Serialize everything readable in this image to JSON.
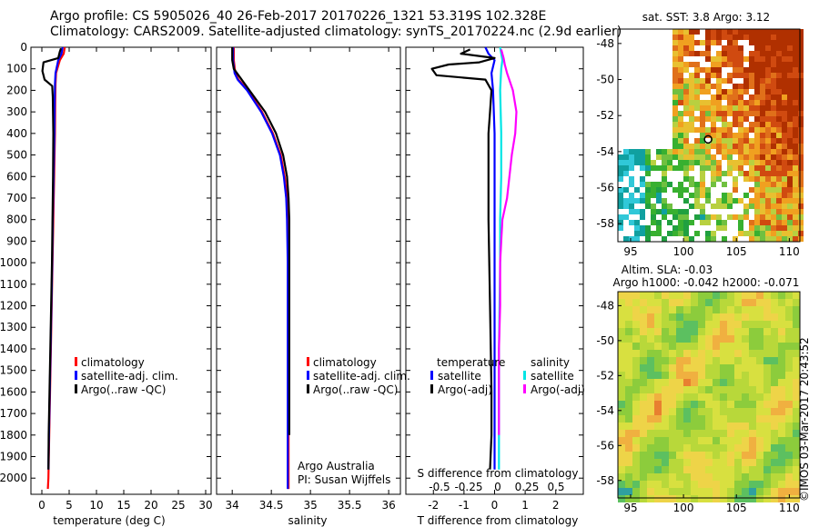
{
  "title_line1": "Argo profile: CS 5905026_40 26-Feb-2017 20170226_1321 53.319S 102.328E",
  "title_line2": "Climatology: CARS2009. Satellite-adjusted climatology: synTS_20170224.nc (2.9d earlier)",
  "colors": {
    "climatology": "#ff0000",
    "satellite": "#0000ff",
    "argo": "#000000",
    "t_satellite": "#0000ff",
    "s_satellite": "#00e5e5",
    "s_argo": "#ff00ff"
  },
  "legend_temp": {
    "climatology": "climatology",
    "satellite": "satellite-adj. clim.",
    "argo": "Argo(..raw -QC)"
  },
  "legend_sal": {
    "climatology": "climatology",
    "satellite": "satellite-adj. clim.",
    "argo": "Argo(..raw -QC)"
  },
  "legend_diff": {
    "temp_head": "temperature",
    "temp_sat": "satellite",
    "temp_argo": "Argo(-adj)",
    "sal_head": "salinity",
    "sal_sat": "satellite",
    "sal_argo": "Argo(-adj)"
  },
  "sal_note": {
    "line1": "Argo Australia",
    "line2": "PI: Susan Wijffels"
  },
  "sst_title": "sat. SST: 3.8  Argo: 3.12",
  "sla_title1": "Altim. SLA: -0.03",
  "sla_title2": "Argo h1000: -0.042  h2000: -0.071",
  "watermark": "©IMOS 03-Mar-2017 20:43:52",
  "chart_data": [
    {
      "type": "line",
      "name": "temperature-profile",
      "xlabel": "temperature (deg C)",
      "ylabel": "",
      "xlim": [
        -2,
        31
      ],
      "ylim": [
        2075,
        0
      ],
      "xticks": [
        0,
        5,
        10,
        15,
        20,
        25,
        30
      ],
      "yticks": [
        0,
        100,
        200,
        300,
        400,
        500,
        600,
        700,
        800,
        900,
        1000,
        1100,
        1200,
        1300,
        1400,
        1500,
        1600,
        1700,
        1800,
        1900,
        2000
      ],
      "series": [
        {
          "name": "climatology",
          "color": "#ff0000",
          "x": [
            4.2,
            4.0,
            3.3,
            2.6,
            2.5,
            2.45,
            2.4,
            2.25,
            2.1,
            1.95,
            1.8,
            1.65,
            1.5,
            1.35,
            1.2,
            1.1
          ],
          "y": [
            0,
            30,
            60,
            120,
            170,
            250,
            400,
            600,
            800,
            1000,
            1200,
            1400,
            1600,
            1800,
            2000,
            2050
          ]
        },
        {
          "name": "satellite-adj. clim.",
          "color": "#0000ff",
          "x": [
            3.8,
            3.6,
            3.0,
            2.5,
            2.4,
            2.35,
            2.3,
            2.15,
            2.0,
            1.9,
            1.75,
            1.6,
            1.45,
            1.3,
            1.2
          ],
          "y": [
            0,
            30,
            60,
            120,
            170,
            250,
            400,
            600,
            800,
            1000,
            1200,
            1400,
            1600,
            1800,
            1960
          ]
        },
        {
          "name": "Argo(..raw -QC)",
          "color": "#000000",
          "x": [
            3.5,
            3.3,
            3.0,
            0.3,
            0.1,
            0.5,
            1.9,
            2.0,
            2.1,
            2.05,
            1.95,
            1.85,
            1.7,
            1.55,
            1.4,
            1.25,
            1.2
          ],
          "y": [
            5,
            20,
            50,
            70,
            110,
            150,
            180,
            230,
            400,
            600,
            800,
            1000,
            1200,
            1400,
            1600,
            1800,
            1960
          ]
        }
      ]
    },
    {
      "type": "line",
      "name": "salinity-profile",
      "xlabel": "salinity",
      "ylabel": "",
      "xlim": [
        33.8,
        36.15
      ],
      "ylim": [
        2075,
        0
      ],
      "xticks": [
        34,
        34.5,
        35,
        35.5,
        36
      ],
      "xticklabels": [
        "34",
        "34.5",
        "35",
        "35.5",
        "36"
      ],
      "series": [
        {
          "name": "climatology",
          "color": "#ff0000",
          "x": [
            34.02,
            34.02,
            34.04,
            34.08,
            34.2,
            34.38,
            34.52,
            34.62,
            34.67,
            34.7,
            34.71,
            34.72,
            34.72,
            34.72,
            34.72,
            34.72,
            34.72
          ],
          "y": [
            0,
            60,
            120,
            150,
            200,
            300,
            400,
            500,
            600,
            700,
            800,
            1000,
            1200,
            1400,
            1600,
            1800,
            2050
          ]
        },
        {
          "name": "satellite-adj. clim.",
          "color": "#0000ff",
          "x": [
            34.01,
            34.01,
            34.03,
            34.07,
            34.19,
            34.37,
            34.51,
            34.61,
            34.66,
            34.69,
            34.7,
            34.71,
            34.71,
            34.71,
            34.71,
            34.71,
            34.71
          ],
          "y": [
            0,
            60,
            120,
            150,
            200,
            300,
            400,
            500,
            600,
            700,
            800,
            1000,
            1200,
            1400,
            1600,
            1800,
            2050
          ]
        },
        {
          "name": "Argo(..raw -QC)",
          "color": "#000000",
          "x": [
            34.0,
            34.0,
            34.02,
            34.1,
            34.22,
            34.42,
            34.56,
            34.65,
            34.7,
            34.72,
            34.73,
            34.73,
            34.73,
            34.73,
            34.73,
            34.73
          ],
          "y": [
            0,
            60,
            100,
            140,
            200,
            300,
            400,
            500,
            600,
            700,
            800,
            1000,
            1200,
            1400,
            1600,
            1800
          ]
        }
      ]
    },
    {
      "type": "line",
      "name": "difference-from-climatology",
      "xlabel": "T difference from climatology",
      "top_axis_label": "S difference from climatology",
      "xlim": [
        -2.9,
        2.9
      ],
      "ylim": [
        2075,
        0
      ],
      "xticks": [
        -2,
        -1,
        0,
        1,
        2
      ],
      "top_ticks": [
        -0.5,
        -0.25,
        0,
        0.25,
        0.5
      ],
      "top_ticklabels": [
        "-0.5",
        "-0.25",
        "0",
        "0.25",
        "0.5"
      ],
      "series": [
        {
          "name": "temperature satellite",
          "quantity": "T",
          "color": "#0000ff",
          "x": [
            -0.3,
            -0.2,
            0.0,
            -0.1,
            -0.05,
            0.0,
            0.0,
            0.0,
            0.0,
            0.0,
            0.0,
            0.0
          ],
          "y": [
            0,
            30,
            60,
            120,
            200,
            400,
            600,
            800,
            1000,
            1400,
            1800,
            1960
          ]
        },
        {
          "name": "temperature Argo(-adj)",
          "quantity": "T",
          "color": "#000000",
          "x": [
            -0.8,
            -1.1,
            0.0,
            -0.5,
            -1.5,
            -2.05,
            -1.9,
            -0.3,
            -0.1,
            -0.15,
            -0.2,
            -0.2,
            -0.15,
            -0.1,
            -0.1,
            -0.15
          ],
          "y": [
            10,
            30,
            50,
            70,
            80,
            100,
            130,
            150,
            200,
            300,
            400,
            800,
            1200,
            1600,
            1800,
            1960
          ]
        },
        {
          "name": "salinity satellite",
          "quantity": "S",
          "color": "#00e5e5",
          "x": [
            0.02,
            0.03,
            0.04,
            0.03,
            0.02,
            0.03,
            0.03,
            0.02,
            0.02,
            0.01,
            0.01,
            0.01
          ],
          "y": [
            0,
            30,
            60,
            100,
            200,
            400,
            600,
            800,
            1000,
            1400,
            1800,
            1960
          ]
        },
        {
          "name": "salinity Argo(-adj)",
          "quantity": "S",
          "color": "#ff00ff",
          "x": [
            0.03,
            0.05,
            0.06,
            0.08,
            0.13,
            0.16,
            0.15,
            0.12,
            0.08,
            0.04,
            0.03,
            0.02,
            0.02,
            0.01,
            0.01,
            0.01
          ],
          "y": [
            10,
            50,
            80,
            120,
            200,
            300,
            400,
            500,
            700,
            800,
            900,
            1000,
            1200,
            1400,
            1600,
            1800
          ]
        }
      ]
    },
    {
      "type": "heatmap",
      "name": "sst-map",
      "title": "sat. SST: 3.8  Argo: 3.12",
      "xlim": [
        93.8,
        111
      ],
      "ylim": [
        -59,
        -47.2
      ],
      "xticks": [
        95,
        100,
        105,
        110
      ],
      "yticks": [
        -48,
        -50,
        -52,
        -54,
        -56,
        -58
      ],
      "marker": {
        "lon": 102.328,
        "lat": -53.319
      }
    },
    {
      "type": "heatmap",
      "name": "sla-map",
      "title": "Altim. SLA: -0.03",
      "xlim": [
        93.8,
        111
      ],
      "ylim": [
        -59,
        -47.2
      ],
      "xticks": [
        95,
        100,
        105,
        110
      ],
      "yticks": [
        -48,
        -50,
        -52,
        -54,
        -56,
        -58
      ]
    }
  ]
}
